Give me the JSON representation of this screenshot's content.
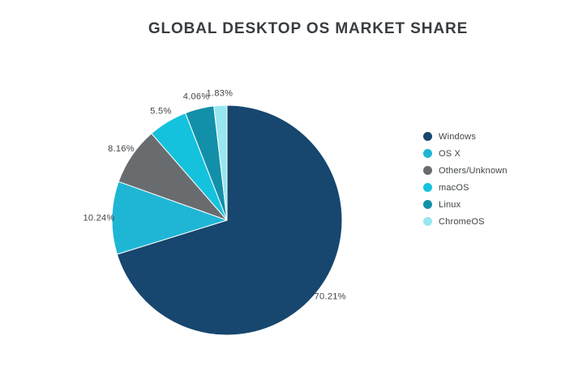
{
  "page": {
    "background": "#ffffff",
    "title_color": "#393d42",
    "label_color": "#3f4347"
  },
  "chart_data": {
    "type": "pie",
    "title": "GLOBAL DESKTOP OS MARKET SHARE",
    "legend_position": "right",
    "grid": false,
    "total": 100,
    "slices": [
      {
        "name": "Windows",
        "value": 70.21,
        "label": "70.21%",
        "color": "#17466e"
      },
      {
        "name": "OS X",
        "value": 10.24,
        "label": "10.24%",
        "color": "#1fb6d5"
      },
      {
        "name": "Others/Unknown",
        "value": 8.16,
        "label": "8.16%",
        "color": "#696c6f"
      },
      {
        "name": "macOS",
        "value": 5.5,
        "label": "5.5%",
        "color": "#15c2dd"
      },
      {
        "name": "Linux",
        "value": 4.06,
        "label": "4.06%",
        "color": "#1390a9"
      },
      {
        "name": "ChromeOS",
        "value": 1.83,
        "label": "1.83%",
        "color": "#97e7f0"
      }
    ]
  }
}
